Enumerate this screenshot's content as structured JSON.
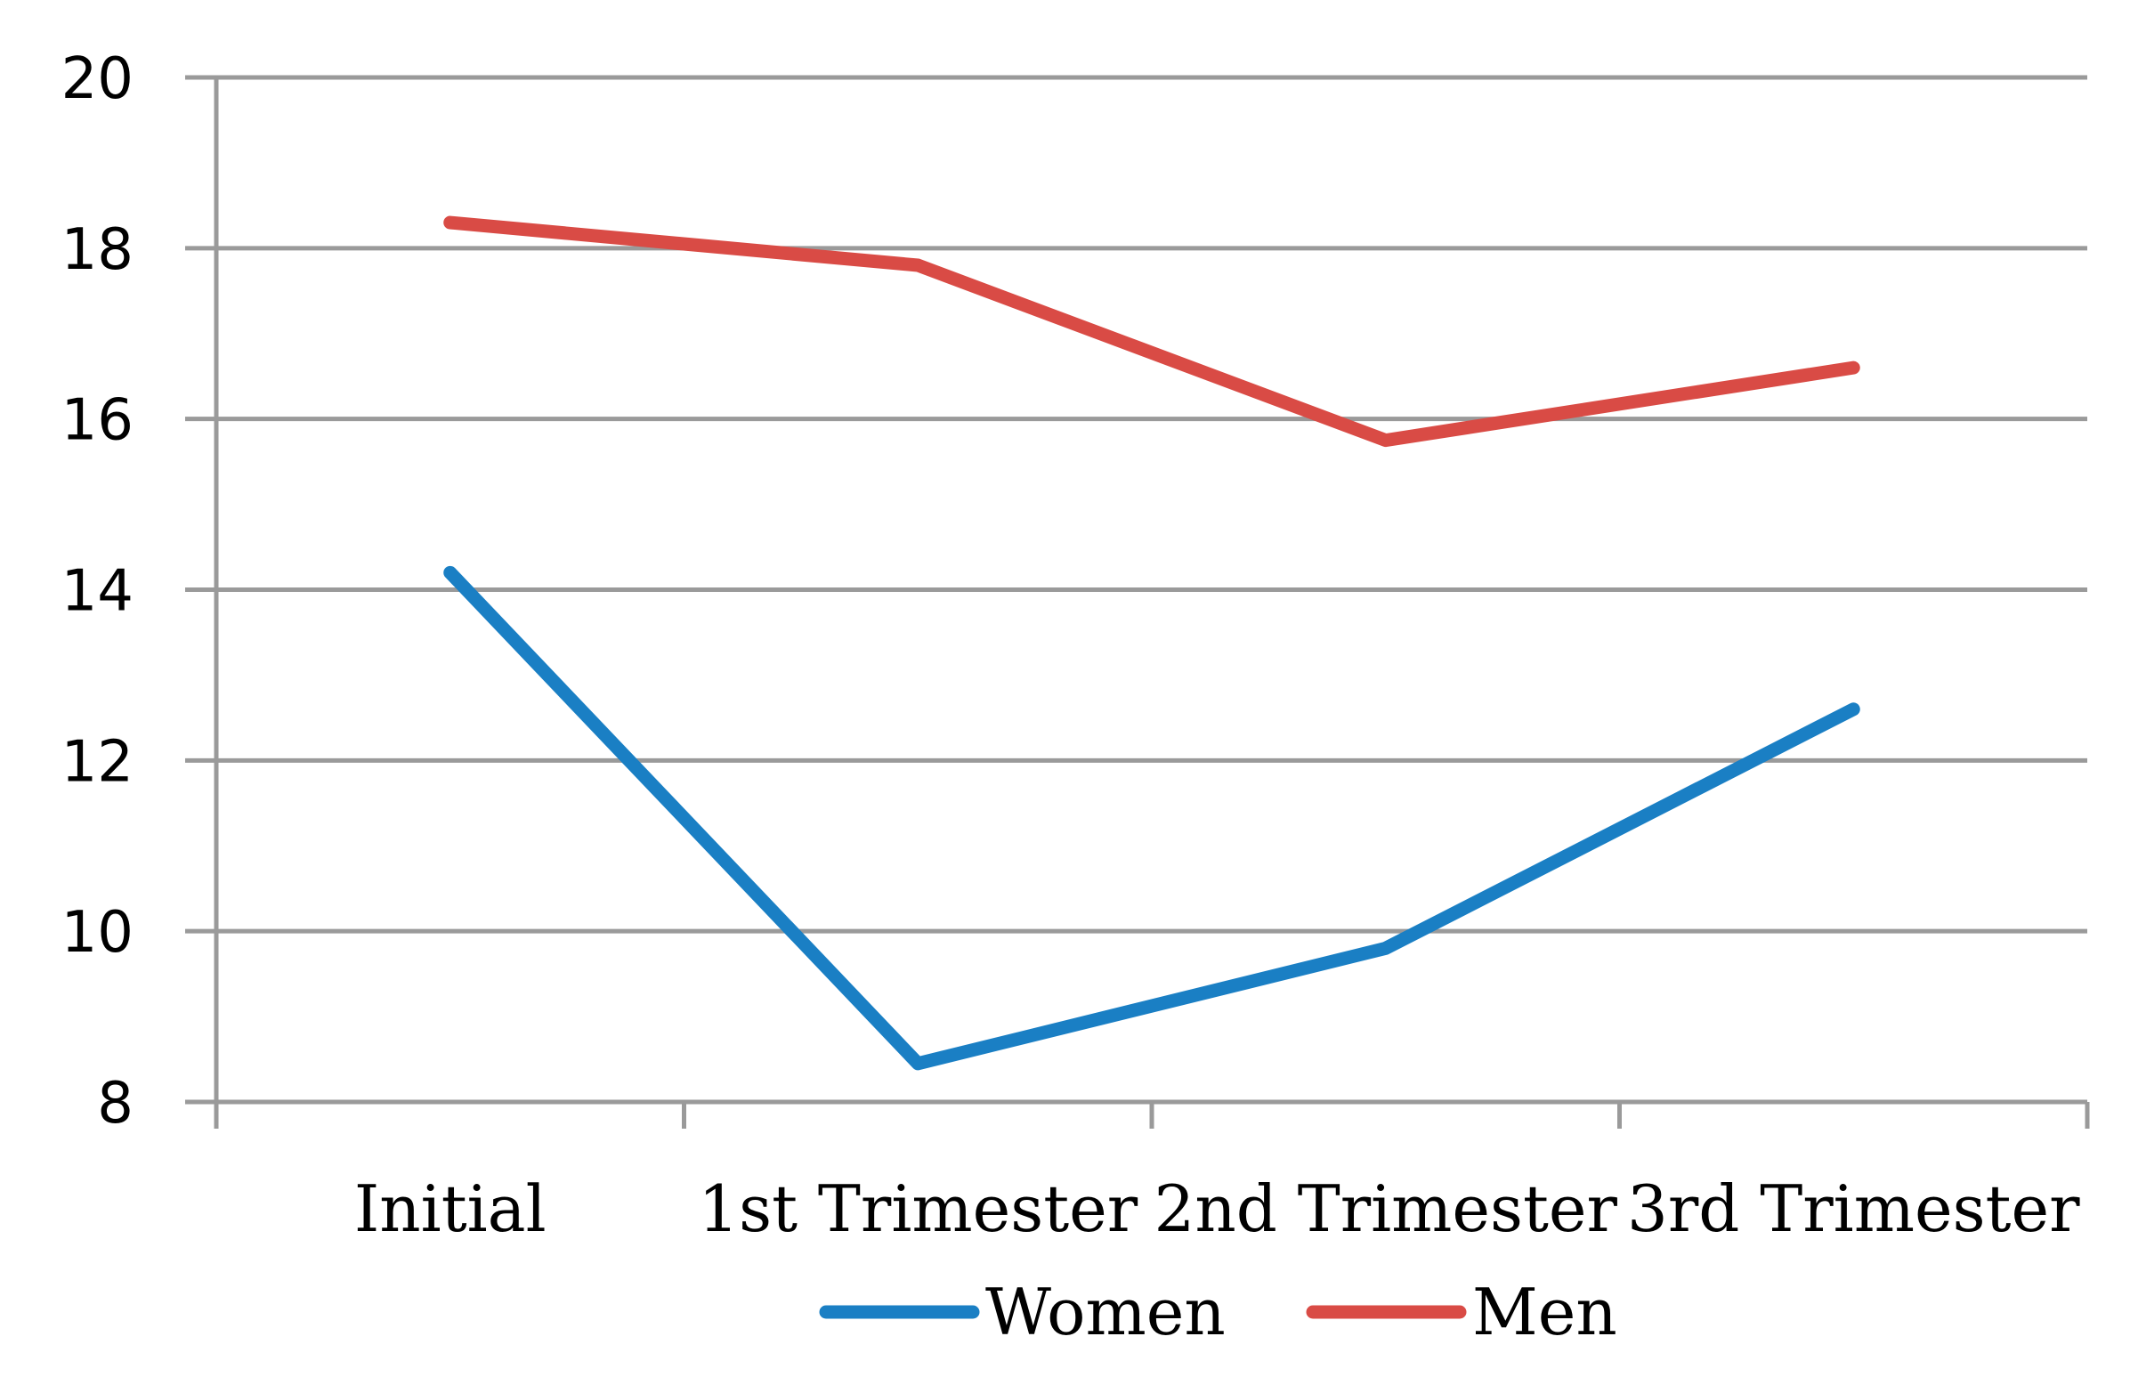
{
  "chart_data": {
    "type": "line",
    "categories": [
      "Initial",
      "1st Trimester",
      "2nd Trimester",
      "3rd Trimester"
    ],
    "series": [
      {
        "name": "Women",
        "color": "#1a7fc4",
        "values": [
          14.2,
          8.45,
          9.8,
          12.6
        ]
      },
      {
        "name": "Men",
        "color": "#d94b45",
        "values": [
          18.3,
          17.8,
          15.75,
          16.6
        ]
      }
    ],
    "y_ticks": [
      "8",
      "10",
      "12",
      "14",
      "16",
      "18",
      "20"
    ],
    "ylim": [
      8,
      20
    ],
    "grid": true,
    "legend_position": "bottom"
  }
}
